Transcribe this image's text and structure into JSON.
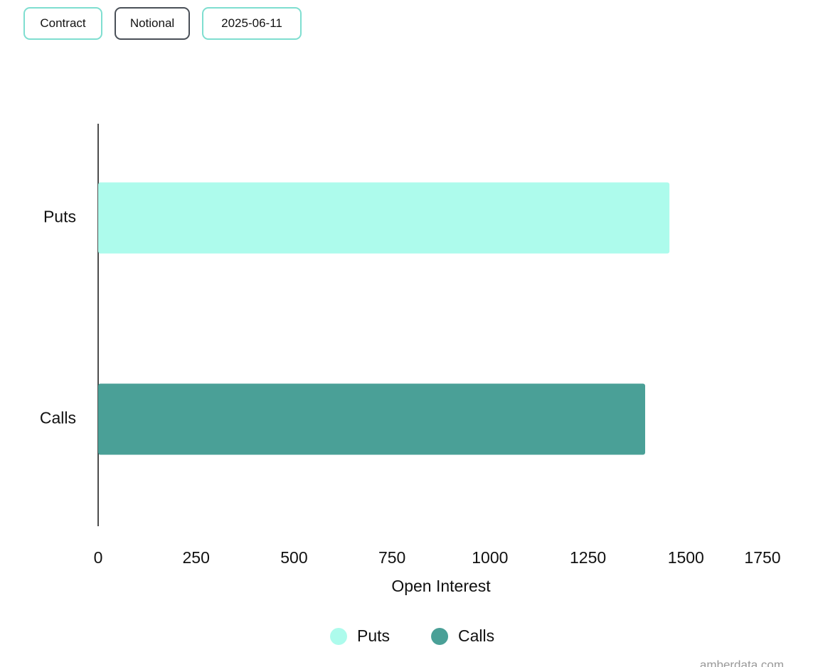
{
  "controls": [
    "Contract",
    "Notional",
    "2025-06-11"
  ],
  "chart_data": {
    "type": "bar",
    "orientation": "horizontal",
    "categories": [
      "Puts",
      "Calls"
    ],
    "series": [
      {
        "name": "Puts",
        "color": "#adfbec",
        "values": [
          1458,
          null
        ]
      },
      {
        "name": "Calls",
        "color": "#4aa097",
        "values": [
          null,
          1396
        ]
      }
    ],
    "xlabel": "Open Interest",
    "xlim": [
      0,
      1750
    ],
    "xticks": [
      0,
      250,
      500,
      750,
      1000,
      1250,
      1500,
      1750
    ],
    "grid": false
  },
  "watermark": "amberdata.com"
}
